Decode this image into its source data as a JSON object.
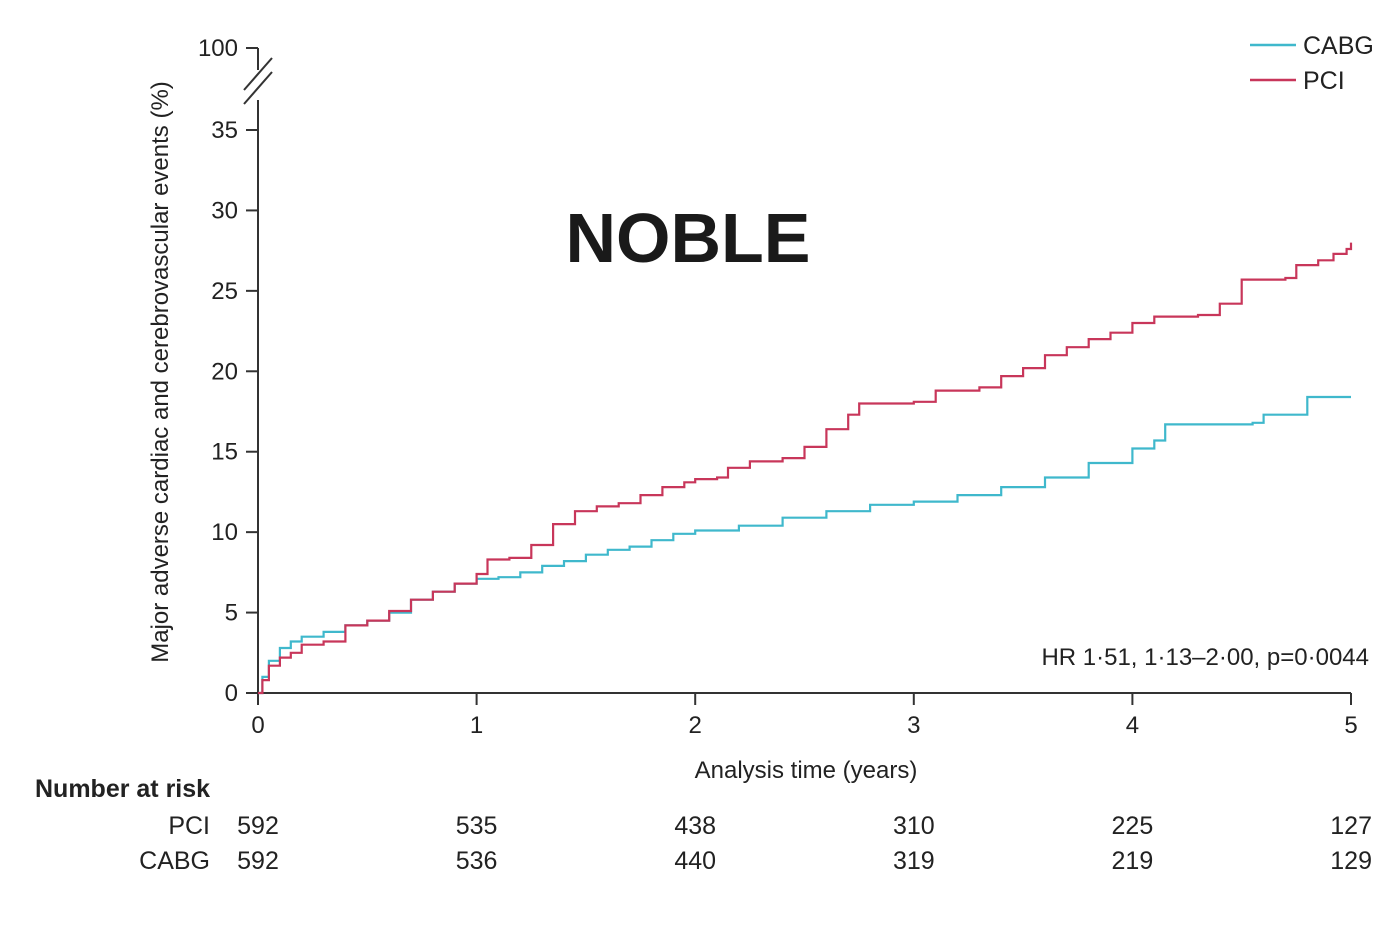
{
  "colors": {
    "cabg": "#3fb8cc",
    "pci": "#c8365a",
    "axis": "#333333",
    "text": "#222222"
  },
  "chart_data": {
    "type": "line",
    "title": "NOBLE",
    "xlabel": "Analysis time (years)",
    "ylabel": "Major adverse cardiac and cerebrovascular events (%)",
    "xlim": [
      0,
      5
    ],
    "ylim": [
      0,
      35
    ],
    "y_break_top_label": "100",
    "x_ticks": [
      "0",
      "1",
      "2",
      "3",
      "4",
      "5"
    ],
    "y_ticks": [
      "0",
      "5",
      "10",
      "15",
      "20",
      "25",
      "30",
      "35"
    ],
    "grid": false,
    "legend_position": "top-right",
    "annotation": "HR 1·51, 1·13–2·00, p=0·0044",
    "series": [
      {
        "name": "CABG",
        "color_key": "cabg",
        "points": [
          [
            0,
            0
          ],
          [
            0.02,
            1.0
          ],
          [
            0.05,
            2.0
          ],
          [
            0.1,
            2.8
          ],
          [
            0.15,
            3.2
          ],
          [
            0.2,
            3.5
          ],
          [
            0.3,
            3.8
          ],
          [
            0.4,
            4.2
          ],
          [
            0.5,
            4.5
          ],
          [
            0.6,
            5.0
          ],
          [
            0.7,
            5.8
          ],
          [
            0.8,
            6.3
          ],
          [
            0.9,
            6.8
          ],
          [
            1.0,
            7.1
          ],
          [
            1.1,
            7.2
          ],
          [
            1.2,
            7.5
          ],
          [
            1.3,
            7.9
          ],
          [
            1.4,
            8.2
          ],
          [
            1.5,
            8.6
          ],
          [
            1.6,
            8.9
          ],
          [
            1.7,
            9.1
          ],
          [
            1.8,
            9.5
          ],
          [
            1.9,
            9.9
          ],
          [
            2.0,
            10.1
          ],
          [
            2.2,
            10.4
          ],
          [
            2.4,
            10.9
          ],
          [
            2.6,
            11.3
          ],
          [
            2.8,
            11.7
          ],
          [
            3.0,
            11.9
          ],
          [
            3.2,
            12.3
          ],
          [
            3.4,
            12.8
          ],
          [
            3.6,
            13.4
          ],
          [
            3.8,
            14.3
          ],
          [
            4.0,
            15.2
          ],
          [
            4.1,
            15.7
          ],
          [
            4.15,
            16.7
          ],
          [
            4.4,
            16.7
          ],
          [
            4.55,
            16.8
          ],
          [
            4.6,
            17.3
          ],
          [
            4.78,
            17.3
          ],
          [
            4.8,
            18.4
          ],
          [
            5.0,
            18.4
          ]
        ]
      },
      {
        "name": "PCI",
        "color_key": "pci",
        "points": [
          [
            0,
            0
          ],
          [
            0.02,
            0.8
          ],
          [
            0.05,
            1.7
          ],
          [
            0.1,
            2.2
          ],
          [
            0.15,
            2.5
          ],
          [
            0.2,
            3.0
          ],
          [
            0.3,
            3.2
          ],
          [
            0.4,
            4.2
          ],
          [
            0.5,
            4.5
          ],
          [
            0.6,
            5.1
          ],
          [
            0.7,
            5.8
          ],
          [
            0.8,
            6.3
          ],
          [
            0.9,
            6.8
          ],
          [
            1.0,
            7.4
          ],
          [
            1.05,
            8.3
          ],
          [
            1.15,
            8.4
          ],
          [
            1.25,
            9.2
          ],
          [
            1.35,
            10.5
          ],
          [
            1.45,
            11.3
          ],
          [
            1.55,
            11.6
          ],
          [
            1.65,
            11.8
          ],
          [
            1.75,
            12.3
          ],
          [
            1.85,
            12.8
          ],
          [
            1.95,
            13.1
          ],
          [
            2.0,
            13.3
          ],
          [
            2.1,
            13.4
          ],
          [
            2.15,
            14.0
          ],
          [
            2.25,
            14.4
          ],
          [
            2.4,
            14.6
          ],
          [
            2.5,
            15.3
          ],
          [
            2.6,
            16.4
          ],
          [
            2.7,
            17.3
          ],
          [
            2.75,
            18.0
          ],
          [
            3.0,
            18.1
          ],
          [
            3.1,
            18.8
          ],
          [
            3.2,
            18.8
          ],
          [
            3.3,
            19.0
          ],
          [
            3.4,
            19.7
          ],
          [
            3.5,
            20.2
          ],
          [
            3.6,
            21.0
          ],
          [
            3.7,
            21.5
          ],
          [
            3.8,
            22.0
          ],
          [
            3.9,
            22.4
          ],
          [
            4.0,
            23.0
          ],
          [
            4.1,
            23.4
          ],
          [
            4.3,
            23.5
          ],
          [
            4.4,
            24.2
          ],
          [
            4.5,
            25.7
          ],
          [
            4.7,
            25.8
          ],
          [
            4.75,
            26.6
          ],
          [
            4.85,
            26.9
          ],
          [
            4.92,
            27.3
          ],
          [
            4.98,
            27.6
          ],
          [
            5.0,
            28.0
          ]
        ]
      }
    ],
    "number_at_risk": {
      "header": "Number at risk",
      "rows": [
        {
          "label": "PCI",
          "values": [
            "592",
            "535",
            "438",
            "310",
            "225",
            "127"
          ]
        },
        {
          "label": "CABG",
          "values": [
            "592",
            "536",
            "440",
            "319",
            "219",
            "129"
          ]
        }
      ]
    }
  }
}
